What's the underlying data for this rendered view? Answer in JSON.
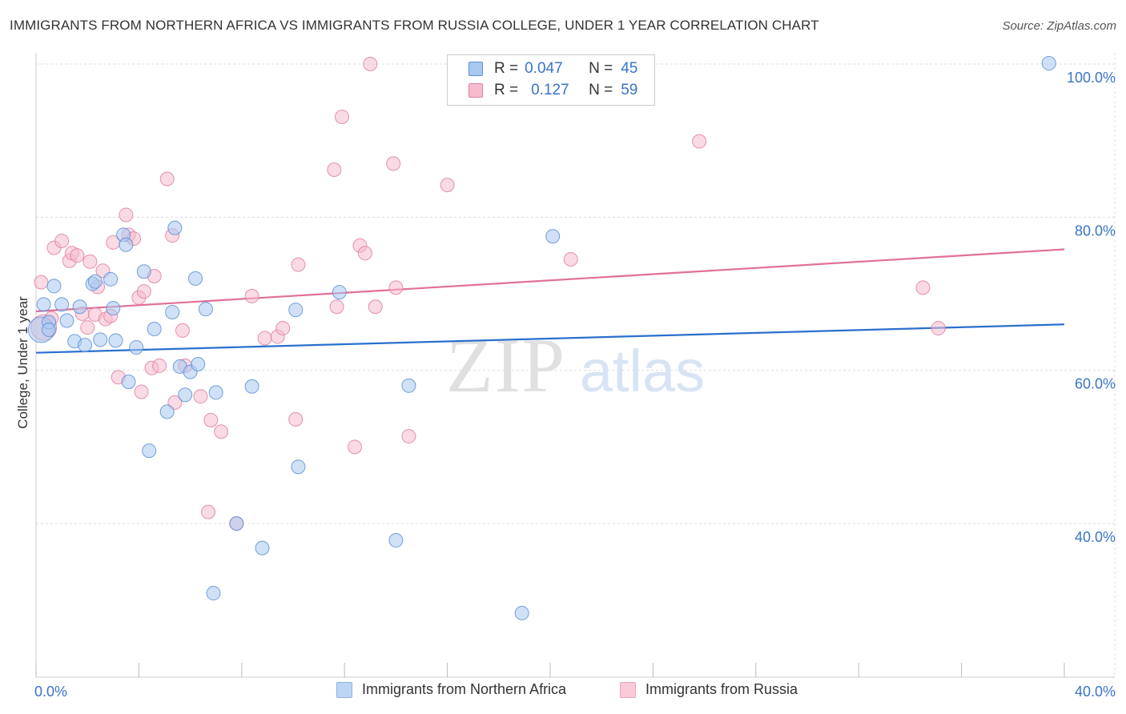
{
  "title": "IMMIGRANTS FROM NORTHERN AFRICA VS IMMIGRANTS FROM RUSSIA COLLEGE, UNDER 1 YEAR CORRELATION CHART",
  "source": "Source: ZipAtlas.com",
  "watermark": {
    "zip": "ZIP",
    "atlas": "atlas"
  },
  "colors": {
    "blue_fill": "#a9c8f0",
    "blue_stroke": "#5a8fd6",
    "blue_line": "#2a6fcc",
    "pink_fill": "#f6bccd",
    "pink_stroke": "#e07fa0",
    "pink_line": "#e07098",
    "axis_text": "#3a74c9"
  },
  "legend": {
    "rows": [
      {
        "r_label": "R =",
        "r_value": "0.047",
        "n_label": "N =",
        "n_value": "45"
      },
      {
        "r_label": "R =",
        "r_value": "0.127",
        "n_label": "N =",
        "n_value": "59"
      }
    ]
  },
  "bottom_legend": {
    "items": [
      {
        "label": "Immigrants from Northern Africa"
      },
      {
        "label": "Immigrants from Russia"
      }
    ]
  },
  "chart_data": {
    "type": "scatter",
    "title": "IMMIGRANTS FROM NORTHERN AFRICA VS IMMIGRANTS FROM RUSSIA COLLEGE, UNDER 1 YEAR CORRELATION CHART",
    "xlabel": "",
    "ylabel": "College, Under 1 year",
    "xlim": [
      0,
      40
    ],
    "ylim": [
      20,
      102
    ],
    "x_tick_labels": [
      {
        "value": 0,
        "label": "0.0%"
      },
      {
        "value": 40,
        "label": "40.0%"
      }
    ],
    "y_tick_labels": [
      {
        "value": 100,
        "label": "100.0%"
      },
      {
        "value": 80,
        "label": "80.0%"
      },
      {
        "value": 60,
        "label": "60.0%"
      },
      {
        "value": 40,
        "label": "40.0%"
      }
    ],
    "series": [
      {
        "name": "Immigrants from Northern Africa",
        "R": 0.047,
        "N": 45,
        "trend": {
          "x0": 0,
          "y0": 62.3,
          "x1": 40,
          "y1": 66.0
        },
        "points": [
          [
            0.2,
            65.3
          ],
          [
            0.3,
            68.6
          ],
          [
            0.5,
            66.3
          ],
          [
            0.7,
            71.0
          ],
          [
            1.0,
            68.6
          ],
          [
            1.2,
            66.5
          ],
          [
            1.5,
            63.8
          ],
          [
            1.7,
            68.3
          ],
          [
            1.9,
            63.3
          ],
          [
            2.2,
            71.3
          ],
          [
            2.3,
            71.6
          ],
          [
            2.5,
            64.0
          ],
          [
            2.9,
            71.9
          ],
          [
            3.0,
            68.1
          ],
          [
            3.1,
            63.9
          ],
          [
            3.4,
            77.7
          ],
          [
            3.5,
            76.4
          ],
          [
            3.6,
            58.5
          ],
          [
            3.9,
            63.0
          ],
          [
            4.2,
            72.9
          ],
          [
            4.4,
            49.5
          ],
          [
            4.6,
            65.4
          ],
          [
            5.1,
            54.6
          ],
          [
            5.3,
            67.6
          ],
          [
            5.4,
            78.6
          ],
          [
            5.6,
            60.5
          ],
          [
            5.8,
            56.8
          ],
          [
            6.0,
            59.8
          ],
          [
            6.2,
            72.0
          ],
          [
            6.3,
            60.8
          ],
          [
            6.6,
            68.0
          ],
          [
            6.9,
            30.9
          ],
          [
            7.0,
            57.1
          ],
          [
            7.8,
            40.0
          ],
          [
            8.4,
            57.9
          ],
          [
            8.8,
            36.8
          ],
          [
            10.1,
            67.9
          ],
          [
            10.2,
            47.4
          ],
          [
            11.8,
            70.2
          ],
          [
            14.0,
            37.8
          ],
          [
            14.5,
            58.0
          ],
          [
            18.9,
            28.3
          ],
          [
            20.1,
            77.5
          ],
          [
            39.4,
            100.1
          ],
          [
            0.5,
            65.3
          ]
        ]
      },
      {
        "name": "Immigrants from Russia",
        "R": 0.127,
        "N": 59,
        "trend": {
          "x0": 0,
          "y0": 67.7,
          "x1": 40,
          "y1": 75.8
        },
        "points": [
          [
            0.2,
            71.5
          ],
          [
            0.3,
            65.6
          ],
          [
            0.6,
            66.8
          ],
          [
            0.7,
            76.0
          ],
          [
            1.0,
            76.9
          ],
          [
            1.3,
            74.3
          ],
          [
            1.4,
            75.3
          ],
          [
            1.6,
            75.0
          ],
          [
            1.8,
            67.4
          ],
          [
            2.0,
            65.6
          ],
          [
            2.1,
            74.2
          ],
          [
            2.3,
            67.3
          ],
          [
            2.4,
            70.9
          ],
          [
            2.6,
            73.0
          ],
          [
            2.7,
            66.7
          ],
          [
            2.9,
            67.1
          ],
          [
            3.0,
            76.7
          ],
          [
            3.2,
            59.1
          ],
          [
            3.5,
            80.3
          ],
          [
            3.6,
            77.7
          ],
          [
            3.8,
            77.2
          ],
          [
            4.0,
            69.5
          ],
          [
            4.1,
            57.2
          ],
          [
            4.2,
            70.3
          ],
          [
            4.5,
            60.3
          ],
          [
            4.6,
            72.3
          ],
          [
            4.8,
            60.6
          ],
          [
            5.1,
            85.0
          ],
          [
            5.3,
            77.6
          ],
          [
            5.4,
            55.8
          ],
          [
            5.7,
            65.2
          ],
          [
            5.8,
            60.6
          ],
          [
            6.4,
            56.6
          ],
          [
            6.7,
            41.5
          ],
          [
            6.8,
            53.5
          ],
          [
            7.2,
            52.0
          ],
          [
            7.8,
            40.0
          ],
          [
            8.4,
            69.7
          ],
          [
            8.9,
            64.2
          ],
          [
            9.4,
            64.4
          ],
          [
            9.6,
            65.5
          ],
          [
            10.1,
            53.6
          ],
          [
            10.2,
            73.8
          ],
          [
            11.6,
            86.2
          ],
          [
            11.7,
            68.3
          ],
          [
            11.9,
            93.1
          ],
          [
            12.4,
            50.0
          ],
          [
            12.6,
            76.3
          ],
          [
            12.8,
            75.3
          ],
          [
            13.0,
            100.0
          ],
          [
            13.2,
            68.3
          ],
          [
            13.9,
            87.0
          ],
          [
            14.0,
            70.8
          ],
          [
            14.5,
            51.4
          ],
          [
            16.0,
            84.2
          ],
          [
            20.8,
            74.5
          ],
          [
            25.8,
            89.9
          ],
          [
            34.5,
            70.8
          ],
          [
            35.1,
            65.5
          ]
        ]
      }
    ],
    "grid": true,
    "legend_position": "top-center"
  }
}
